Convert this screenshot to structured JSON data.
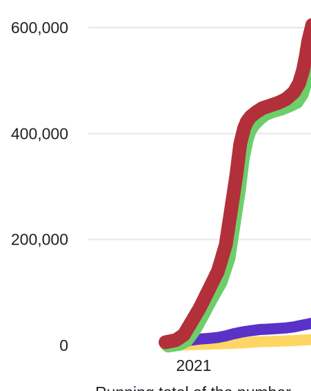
{
  "chart_data": {
    "type": "scatter",
    "title": "",
    "xlabel": "",
    "ylabel": "",
    "caption": "Running total of the number",
    "x_ticks": [
      "2021"
    ],
    "y_ticks": [
      "0",
      "200,000",
      "400,000",
      "600,000"
    ],
    "y_tick_values": [
      0,
      200000,
      400000,
      600000
    ],
    "ylim": [
      0,
      600000
    ],
    "grid": true,
    "legend": "none",
    "x_unit": "month of 2021 (0 = start of 2021)",
    "xlim": [
      -1,
      4.6
    ],
    "series": [
      {
        "color": "#6ccf6a",
        "x": [
          -1.0,
          -0.6,
          -0.3,
          0.0,
          0.3,
          0.6,
          1.0,
          1.3,
          1.5,
          1.7,
          1.85,
          2.0,
          2.1,
          2.25,
          2.45,
          2.7,
          3.0,
          3.3,
          3.6,
          3.9,
          4.1,
          4.25,
          4.35,
          4.45,
          4.6
        ],
        "values": [
          5000,
          8000,
          15000,
          35000,
          62000,
          90000,
          125000,
          170000,
          235000,
          300000,
          360000,
          395000,
          410000,
          422000,
          432000,
          442000,
          448000,
          452000,
          458000,
          465000,
          480000,
          505000,
          530000,
          560000,
          590000
        ]
      },
      {
        "color": "#b2303a",
        "x": [
          -1.0,
          -0.6,
          -0.3,
          0.0,
          0.3,
          0.6,
          1.0,
          1.3,
          1.5,
          1.7,
          1.85,
          2.0,
          2.1,
          2.25,
          2.45,
          2.7,
          3.0,
          3.3,
          3.6,
          3.9,
          4.1,
          4.25,
          4.35,
          4.45,
          4.6
        ],
        "values": [
          6000,
          10000,
          20000,
          45000,
          70000,
          100000,
          140000,
          190000,
          255000,
          320000,
          380000,
          410000,
          422000,
          432000,
          440000,
          448000,
          453000,
          458000,
          465000,
          478000,
          495000,
          520000,
          545000,
          575000,
          605000
        ]
      },
      {
        "color": "#5a32c8",
        "x": [
          -1.0,
          -0.6,
          -0.3,
          0.0,
          0.3,
          0.6,
          1.0,
          1.3,
          1.6,
          2.0,
          2.3,
          2.6,
          3.0,
          3.3,
          3.6,
          3.9,
          4.2,
          4.6
        ],
        "values": [
          4000,
          6000,
          8000,
          10000,
          12000,
          13000,
          15000,
          18000,
          22000,
          26000,
          28000,
          30000,
          31000,
          32000,
          33000,
          35000,
          38000,
          42000
        ]
      },
      {
        "color": "#fdd663",
        "x": [
          -1.0,
          -0.6,
          -0.3,
          0.0,
          0.3,
          0.6,
          1.0,
          1.3,
          1.6,
          2.0,
          2.3,
          2.6,
          3.0,
          3.3,
          3.6,
          3.9,
          4.2,
          4.6
        ],
        "values": [
          0,
          500,
          1000,
          1500,
          2000,
          2500,
          3000,
          3500,
          4000,
          5000,
          6000,
          7000,
          7500,
          8000,
          8500,
          9000,
          10000,
          11000
        ]
      }
    ]
  }
}
